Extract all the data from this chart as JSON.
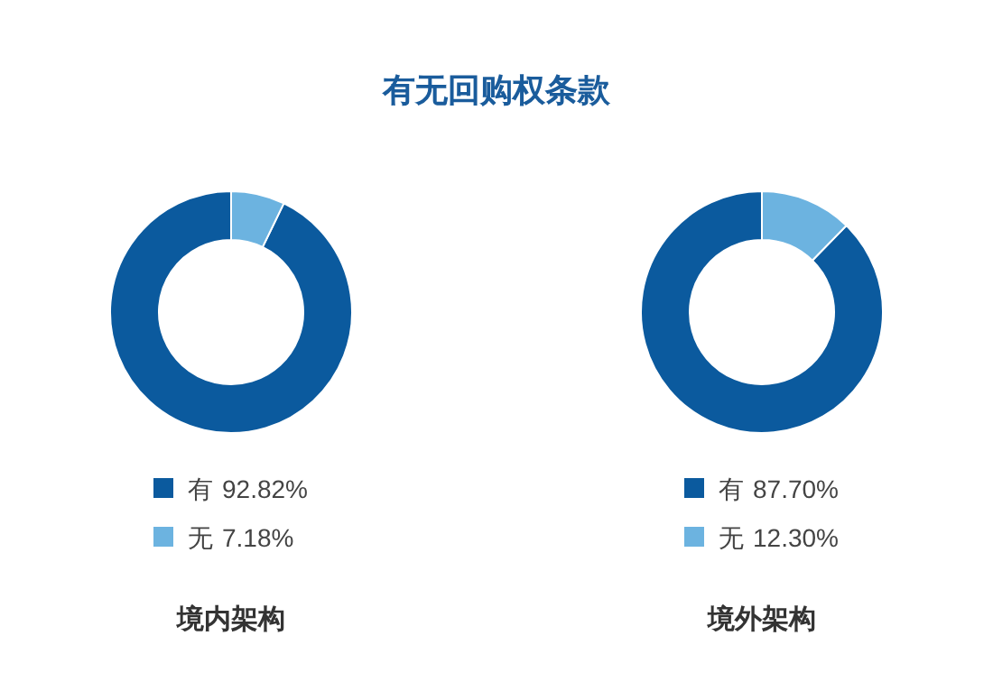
{
  "chart_data": [
    {
      "type": "donut",
      "title": "有无回购权条款",
      "subtitle": "境内架构",
      "categories": [
        "有",
        "无"
      ],
      "values": [
        92.82,
        7.18
      ],
      "colors": [
        "#0b5a9e",
        "#6cb3e0"
      ],
      "value_labels": [
        "92.82%",
        "7.18%"
      ],
      "legend": "bottom"
    },
    {
      "type": "donut",
      "subtitle": "境外架构",
      "categories": [
        "有",
        "无"
      ],
      "values": [
        87.7,
        12.3
      ],
      "colors": [
        "#0b5a9e",
        "#6cb3e0"
      ],
      "value_labels": [
        "87.70%",
        "12.30%"
      ],
      "legend": "bottom"
    }
  ]
}
